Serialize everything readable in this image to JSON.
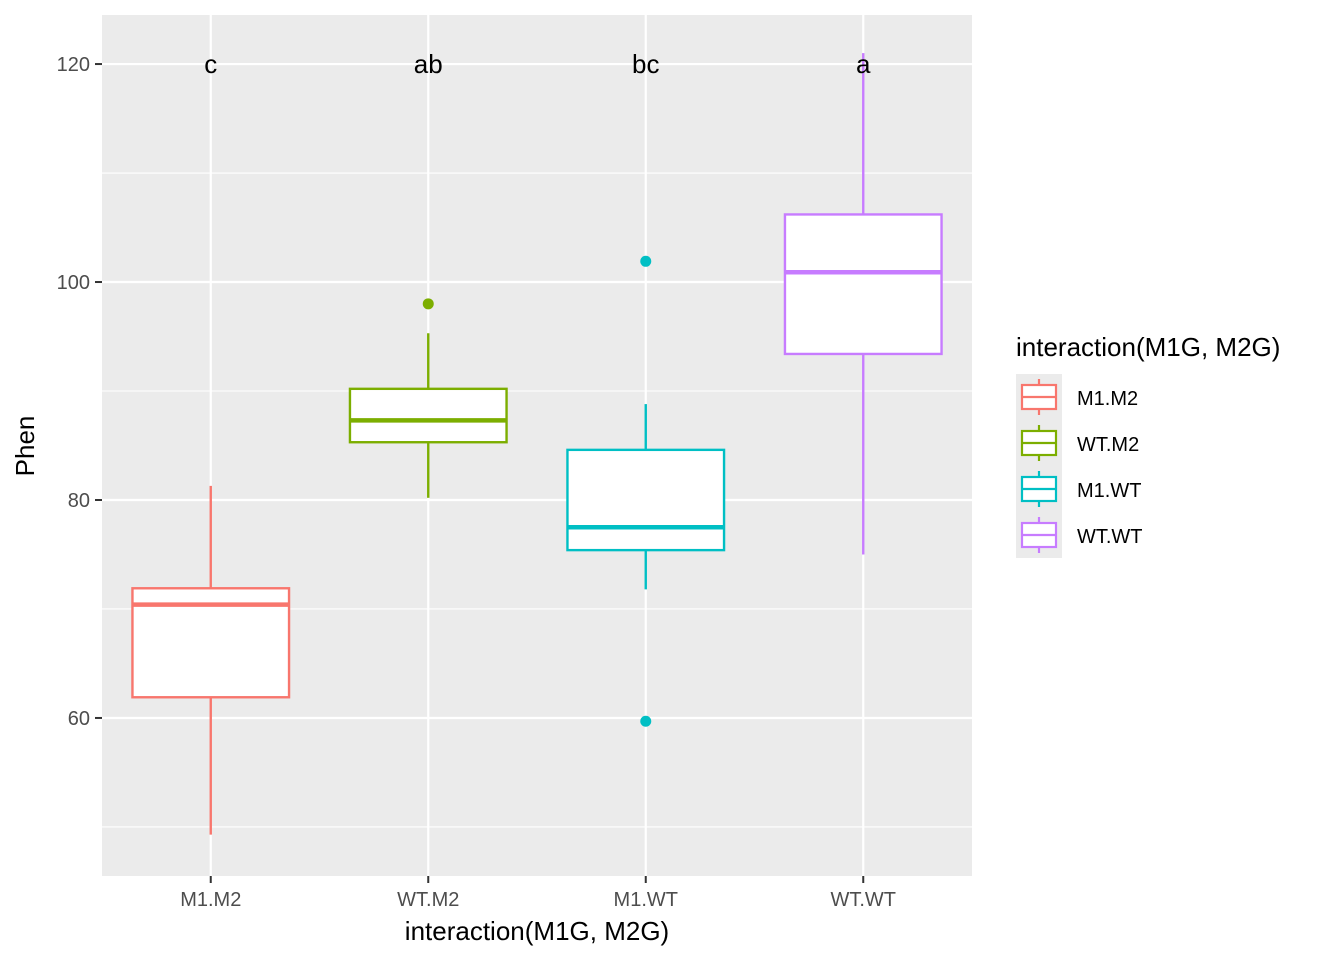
{
  "chart_data": {
    "type": "boxplot",
    "xlabel": "interaction(M1G, M2G)",
    "ylabel": "Phen",
    "ylim": [
      45.5,
      124.5
    ],
    "yticks": [
      60,
      80,
      100,
      120
    ],
    "grid": true,
    "legend": {
      "title": "interaction(M1G, M2G)",
      "placement": "right"
    },
    "categories": [
      "M1.M2",
      "WT.M2",
      "M1.WT",
      "WT.WT"
    ],
    "series": [
      {
        "name": "M1.M2",
        "color": "#F8766D",
        "whisker_low": 49.3,
        "q1": 61.9,
        "median": 70.4,
        "q3": 71.9,
        "whisker_high": 81.3,
        "outliers": [],
        "sig_label": "c"
      },
      {
        "name": "WT.M2",
        "color": "#7CAE00",
        "whisker_low": 80.2,
        "q1": 85.3,
        "median": 87.3,
        "q3": 90.2,
        "whisker_high": 95.3,
        "outliers": [
          98.0
        ],
        "sig_label": "ab"
      },
      {
        "name": "M1.WT",
        "color": "#00BFC4",
        "whisker_low": 71.8,
        "q1": 75.4,
        "median": 77.5,
        "q3": 84.6,
        "whisker_high": 88.8,
        "outliers": [
          101.9,
          59.7
        ],
        "sig_label": "bc"
      },
      {
        "name": "WT.WT",
        "color": "#C77CFF",
        "whisker_low": 75.0,
        "q1": 93.4,
        "median": 100.9,
        "q3": 106.2,
        "whisker_high": 121.0,
        "outliers": [],
        "sig_label": "a"
      }
    ],
    "sig_label_y": 120
  }
}
